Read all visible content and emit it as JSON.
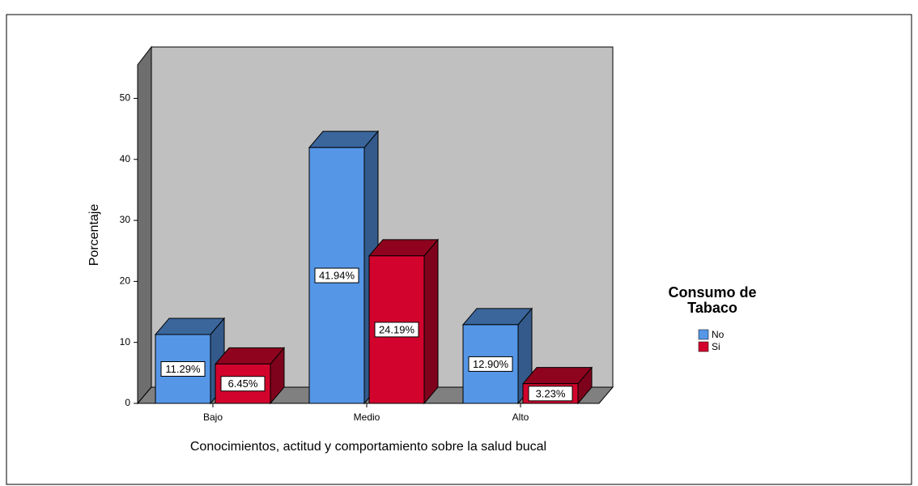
{
  "chart_data": {
    "type": "bar3d",
    "xlabel": "Conocimientos, actitud y comportamiento sobre la salud bucal",
    "ylabel": "Porcentaje",
    "categories": [
      "Bajo",
      "Medio",
      "Alto"
    ],
    "series": [
      {
        "name": "No",
        "color": "#5596e6",
        "values": [
          11.29,
          41.94,
          12.9
        ],
        "value_labels": [
          "11.29%",
          "41.94%",
          "12.90%"
        ]
      },
      {
        "name": "Si",
        "color": "#d2042d",
        "values": [
          6.45,
          24.19,
          3.23
        ],
        "value_labels": [
          "6.45%",
          "24.19%",
          "3.23%"
        ]
      }
    ],
    "ylim": [
      0,
      55
    ],
    "yticks": [
      0,
      10,
      20,
      30,
      40,
      50
    ],
    "legend_title": "Consumo de Tabaco",
    "legend": "right"
  }
}
